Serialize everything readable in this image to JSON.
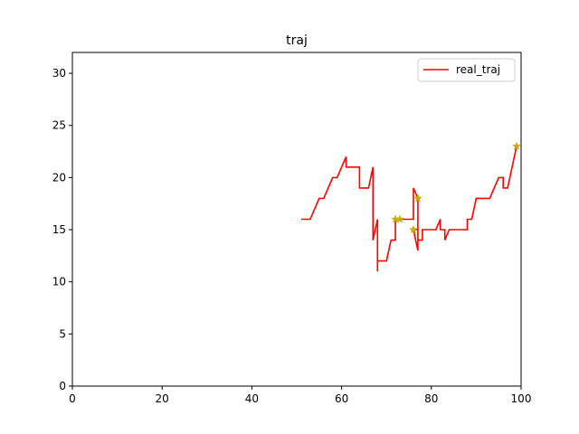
{
  "chart_data": {
    "type": "line",
    "title": "traj",
    "xlabel": "",
    "ylabel": "",
    "xlim": [
      0,
      100
    ],
    "ylim": [
      0,
      32
    ],
    "grid": false,
    "legend_position": "upper right",
    "xticks": [
      0,
      20,
      40,
      60,
      80,
      100
    ],
    "yticks": [
      0,
      5,
      10,
      15,
      20,
      25,
      30
    ],
    "series": [
      {
        "name": "real_traj",
        "color": "#ff0000",
        "x": [
          51,
          53,
          55,
          56,
          58,
          59,
          61,
          61,
          64,
          64,
          66,
          67,
          67,
          68,
          68,
          68,
          70,
          71,
          72,
          72,
          73,
          75,
          76,
          76,
          77,
          77,
          77,
          76,
          76,
          77,
          77,
          78,
          78,
          79,
          79,
          81,
          82,
          82,
          83,
          83,
          84,
          88,
          88,
          89,
          90,
          93,
          95,
          96,
          96,
          97,
          99
        ],
        "y": [
          16,
          16,
          18,
          18,
          20,
          20,
          22,
          21,
          21,
          19,
          19,
          21,
          14,
          16,
          11,
          12,
          12,
          14,
          14,
          16,
          16,
          16,
          16,
          19,
          18,
          16,
          13,
          15,
          15,
          15,
          14,
          14,
          15,
          15,
          15,
          15,
          16,
          15,
          15,
          14,
          15,
          15,
          16,
          16,
          18,
          18,
          20,
          20,
          19,
          19,
          23
        ]
      }
    ],
    "markers": {
      "symbol": "star",
      "color": "#ccaa00",
      "x": [
        72,
        73,
        76,
        77,
        99
      ],
      "y": [
        16,
        16,
        15,
        18,
        23
      ]
    }
  }
}
